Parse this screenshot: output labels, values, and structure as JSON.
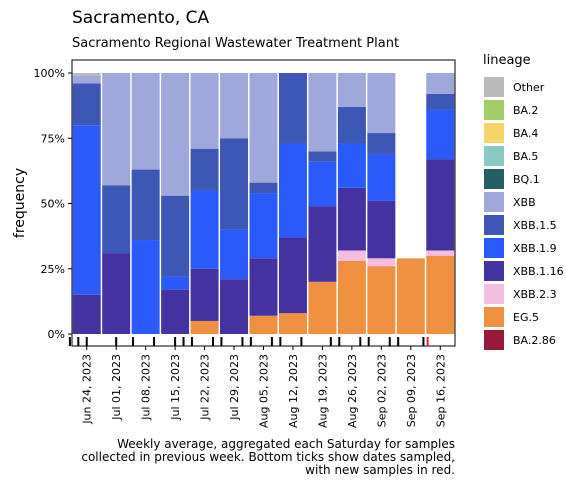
{
  "title": "Sacramento, CA",
  "subtitle": "Sacramento Regional Wastewater Treatment Plant",
  "legend": {
    "title": "lineage",
    "items": [
      {
        "label": "Other",
        "color": "#bbbbbb"
      },
      {
        "label": "BA.2",
        "color": "#a0cc6a"
      },
      {
        "label": "BA.4",
        "color": "#f8d466"
      },
      {
        "label": "BA.5",
        "color": "#87ccc4"
      },
      {
        "label": "BQ.1",
        "color": "#235f64"
      },
      {
        "label": "XBB",
        "color": "#9ea8da"
      },
      {
        "label": "XBB.1.5",
        "color": "#3c57b4"
      },
      {
        "label": "XBB.1.9",
        "color": "#2b5afa"
      },
      {
        "label": "XBB.1.16",
        "color": "#4432a0"
      },
      {
        "label": "XBB.2.3",
        "color": "#f5bde1"
      },
      {
        "label": "EG.5",
        "color": "#ef8f40"
      },
      {
        "label": "BA.2.86",
        "color": "#981a3a"
      }
    ]
  },
  "caption": {
    "line1": "Weekly average, aggregated each Saturday for samples",
    "line2": "collected in previous week. Bottom ticks show dates sampled,",
    "line3": "with new samples in red."
  },
  "chart_data": {
    "type": "bar",
    "stacked": true,
    "ylabel": "frequency",
    "xlabel": "",
    "ylim": [
      0,
      1
    ],
    "yticks": [
      "0%",
      "25%",
      "50%",
      "75%",
      "100%"
    ],
    "x": [
      "Jun 24, 2023",
      "Jul 01, 2023",
      "Jul 08, 2023",
      "Jul 15, 2023",
      "Jul 22, 2023",
      "Jul 29, 2023",
      "Aug 05, 2023",
      "Aug 12, 2023",
      "Aug 19, 2023",
      "Aug 26, 2023",
      "Sep 02, 2023",
      "Sep 09, 2023",
      "Sep 16, 2023"
    ],
    "series": [
      {
        "name": "EG.5",
        "values": [
          0,
          0,
          0,
          0,
          0.05,
          0,
          0.07,
          0.08,
          0.2,
          0.28,
          0.26,
          0.29,
          0.3
        ]
      },
      {
        "name": "XBB.2.3",
        "values": [
          0,
          0,
          0,
          0,
          0,
          0,
          0,
          0,
          0,
          0.04,
          0.03,
          0,
          0.02
        ]
      },
      {
        "name": "XBB.1.16",
        "values": [
          0.15,
          0.31,
          0,
          0.17,
          0.2,
          0.21,
          0.22,
          0.29,
          0.29,
          0.24,
          0.22,
          0,
          0.35
        ]
      },
      {
        "name": "XBB.1.9",
        "values": [
          0.65,
          0,
          0.36,
          0.05,
          0.3,
          0.19,
          0.25,
          0.36,
          0.17,
          0.17,
          0.18,
          0,
          0.19
        ]
      },
      {
        "name": "XBB.1.5",
        "values": [
          0.16,
          0.26,
          0.27,
          0.31,
          0.16,
          0.35,
          0.04,
          0.27,
          0.04,
          0.14,
          0.08,
          0,
          0.06
        ]
      },
      {
        "name": "XBB",
        "values": [
          0.03,
          0.43,
          0.37,
          0.47,
          0.29,
          0.25,
          0.42,
          0,
          0.3,
          0.13,
          0.23,
          0,
          0.08
        ]
      },
      {
        "name": "Other",
        "values": [
          0.01,
          0,
          0,
          0,
          0,
          0,
          0,
          0,
          0,
          0,
          0,
          0,
          0
        ]
      }
    ],
    "sample_ticks": [
      {
        "date": "Jun 20, 2023",
        "new": false
      },
      {
        "date": "Jun 22, 2023",
        "new": false
      },
      {
        "date": "Jun 24, 2023",
        "new": false
      },
      {
        "date": "Jul 01, 2023",
        "new": false
      },
      {
        "date": "Jul 05, 2023",
        "new": false
      },
      {
        "date": "Jul 10, 2023",
        "new": false
      },
      {
        "date": "Jul 15, 2023",
        "new": false
      },
      {
        "date": "Jul 17, 2023",
        "new": false
      },
      {
        "date": "Jul 19, 2023",
        "new": false
      },
      {
        "date": "Jul 24, 2023",
        "new": false
      },
      {
        "date": "Jul 26, 2023",
        "new": false
      },
      {
        "date": "Jul 31, 2023",
        "new": false
      },
      {
        "date": "Aug 02, 2023",
        "new": false
      },
      {
        "date": "Aug 07, 2023",
        "new": false
      },
      {
        "date": "Aug 09, 2023",
        "new": false
      },
      {
        "date": "Aug 14, 2023",
        "new": false
      },
      {
        "date": "Aug 21, 2023",
        "new": false
      },
      {
        "date": "Aug 23, 2023",
        "new": false
      },
      {
        "date": "Aug 28, 2023",
        "new": false
      },
      {
        "date": "Aug 30, 2023",
        "new": false
      },
      {
        "date": "Sep 04, 2023",
        "new": false
      },
      {
        "date": "Sep 06, 2023",
        "new": false
      },
      {
        "date": "Sep 12, 2023",
        "new": false
      },
      {
        "date": "Sep 13, 2023",
        "new": true
      }
    ]
  }
}
